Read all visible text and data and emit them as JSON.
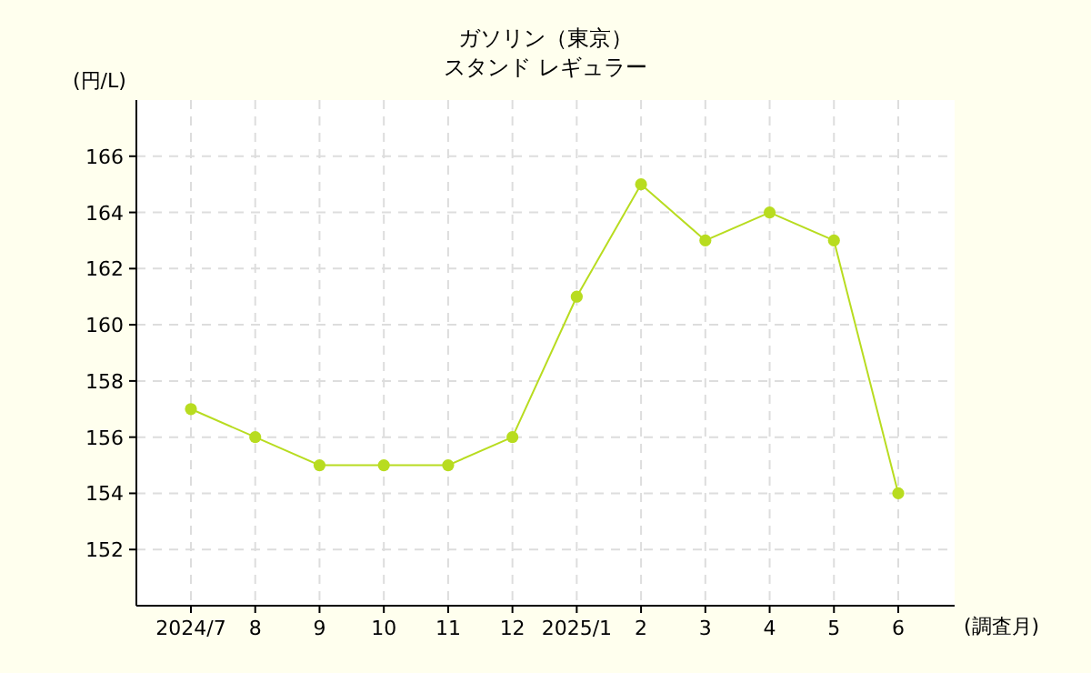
{
  "chart_data": {
    "type": "line",
    "title": "ガソリン（東京）",
    "subtitle": "スタンド レギュラー",
    "ylabel": "(円/L)",
    "xlabel": "(調査月)",
    "categories": [
      "2024/7",
      "8",
      "9",
      "10",
      "11",
      "12",
      "2025/1",
      "2",
      "3",
      "4",
      "5",
      "6"
    ],
    "series": [
      {
        "color": "#b8dc20",
        "values": [
          157,
          156,
          155,
          155,
          155,
          156,
          161,
          165,
          163,
          164,
          163,
          154
        ]
      }
    ],
    "ylim": [
      150,
      168
    ],
    "yticks": [
      152,
      154,
      156,
      158,
      160,
      162,
      164,
      166
    ],
    "grid": true,
    "marker": "circle",
    "line_style": "solid"
  }
}
